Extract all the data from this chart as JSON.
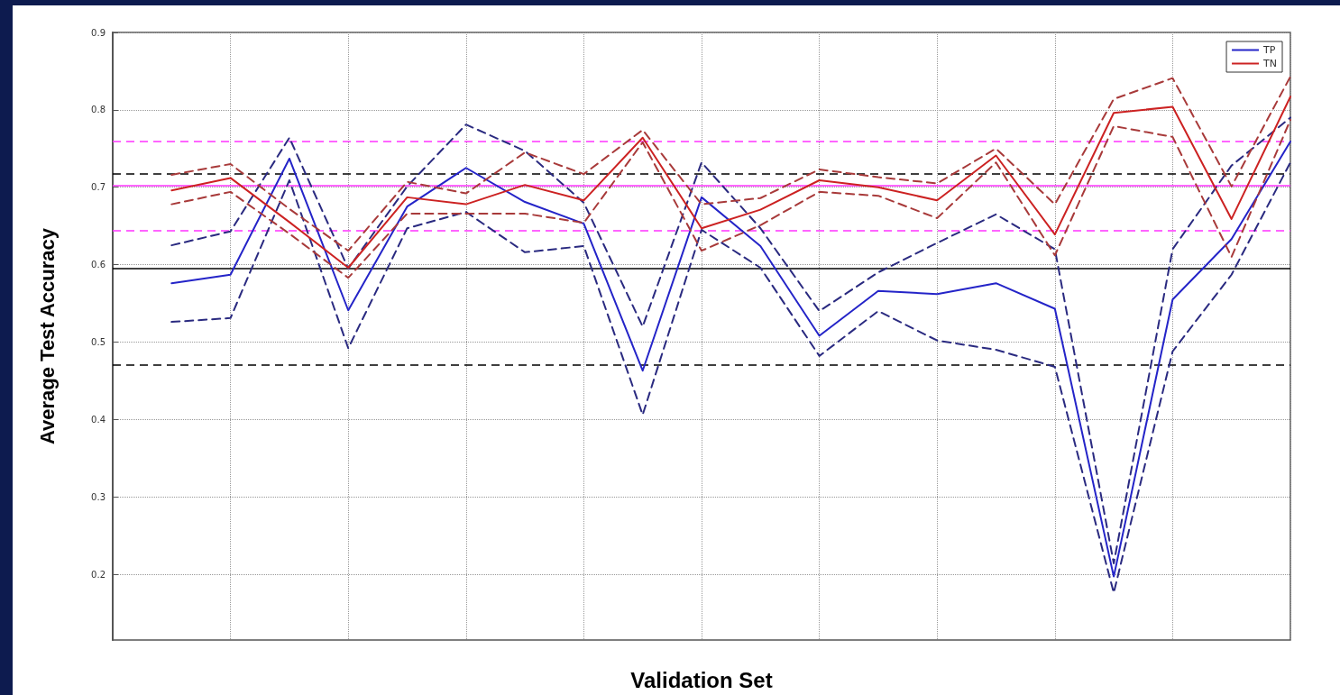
{
  "chart_data": {
    "type": "line",
    "xlabel": "Validation Set",
    "ylabel": "Average Test Accuracy",
    "categories": [
      null,
      null,
      null,
      null,
      null,
      null,
      null,
      null,
      null,
      null,
      null,
      null,
      null,
      null,
      null,
      null,
      null,
      null,
      null,
      null
    ],
    "ylim": [
      0.115,
      0.9
    ],
    "yticks": [
      0.2,
      0.3,
      0.4,
      0.5,
      0.6,
      0.7,
      0.8,
      0.9
    ],
    "tick_labels": "y",
    "grid": true,
    "legend": "top right",
    "marker": "none",
    "series": [
      {
        "name": "TP",
        "color": "#2424c8",
        "line_style": "solid",
        "values": [
          0.576,
          0.587,
          0.737,
          0.541,
          0.675,
          0.725,
          0.681,
          0.653,
          0.463,
          0.687,
          0.624,
          0.508,
          0.566,
          0.562,
          0.576,
          0.543,
          0.197,
          0.555,
          0.633,
          0.759
        ]
      },
      {
        "color": "#2a2a80",
        "line_style": "dashed",
        "values": [
          0.625,
          0.643,
          0.764,
          0.595,
          0.701,
          0.781,
          0.747,
          0.68,
          0.52,
          0.732,
          0.647,
          0.54,
          0.59,
          0.628,
          0.665,
          0.62,
          0.214,
          0.62,
          0.728,
          0.79
        ]
      },
      {
        "color": "#2a2a80",
        "line_style": "dashed",
        "values": [
          0.526,
          0.531,
          0.709,
          0.492,
          0.647,
          0.668,
          0.616,
          0.624,
          0.406,
          0.645,
          0.596,
          0.482,
          0.54,
          0.502,
          0.49,
          0.468,
          0.176,
          0.488,
          0.587,
          0.732
        ]
      },
      {
        "name": "TN",
        "color": "#cc2222",
        "line_style": "solid",
        "values": [
          0.696,
          0.712,
          0.655,
          0.596,
          0.687,
          0.678,
          0.703,
          0.683,
          0.764,
          0.647,
          0.671,
          0.709,
          0.7,
          0.683,
          0.741,
          0.639,
          0.796,
          0.804,
          0.659,
          0.817
        ]
      },
      {
        "color": "#a83a3a",
        "line_style": "dashed",
        "values": [
          0.716,
          0.73,
          0.672,
          0.618,
          0.707,
          0.692,
          0.745,
          0.717,
          0.774,
          0.678,
          0.686,
          0.723,
          0.713,
          0.705,
          0.75,
          0.678,
          0.814,
          0.841,
          0.701,
          0.843
        ]
      },
      {
        "color": "#a83a3a",
        "line_style": "dashed",
        "values": [
          0.678,
          0.694,
          0.64,
          0.583,
          0.666,
          0.666,
          0.666,
          0.654,
          0.758,
          0.618,
          0.651,
          0.694,
          0.689,
          0.66,
          0.732,
          0.612,
          0.779,
          0.765,
          0.61,
          0.787
        ]
      }
    ],
    "ref_lines": [
      {
        "axis": "y",
        "value": 0.702,
        "color": "#ff33ff",
        "line_style": "solid"
      },
      {
        "axis": "y",
        "value": 0.759,
        "color": "#ff33ff",
        "line_style": "dashed"
      },
      {
        "axis": "y",
        "value": 0.644,
        "color": "#ff33ff",
        "line_style": "dashed"
      },
      {
        "axis": "y",
        "value": 0.595,
        "color": "#000000",
        "line_style": "solid"
      },
      {
        "axis": "y",
        "value": 0.718,
        "color": "#000000",
        "line_style": "dashed"
      },
      {
        "axis": "y",
        "value": 0.47,
        "color": "#000000",
        "line_style": "dashed"
      }
    ]
  }
}
